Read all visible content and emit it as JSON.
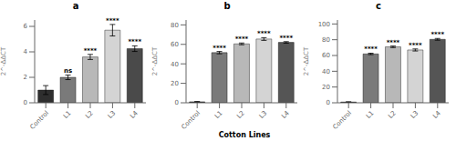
{
  "chart_data": [
    {
      "type": "bar",
      "title": "a",
      "ylabel": "2^-ΔΔCT",
      "categories": [
        "Control",
        "L1",
        "L2",
        "L3",
        "L4"
      ],
      "values": [
        1.0,
        2.0,
        3.6,
        5.7,
        4.25
      ],
      "errors": [
        0.35,
        0.18,
        0.2,
        0.45,
        0.22
      ],
      "colors": [
        "#2e2e2e",
        "#7a7a7a",
        "#b8b8b8",
        "#d4d4d4",
        "#4a4a4a"
      ],
      "annotations": [
        null,
        "ns",
        "****",
        "****",
        "****"
      ],
      "ylim": [
        0,
        6.5
      ],
      "yticks": [
        0,
        2,
        4,
        6
      ],
      "grid": false
    },
    {
      "type": "bar",
      "title": "b",
      "ylabel": "2^-ΔΔCT",
      "xlabel": "Cotton Lines",
      "categories": [
        "Control",
        "L1",
        "L2",
        "L3",
        "L4"
      ],
      "values": [
        1.0,
        51.5,
        60.5,
        65.5,
        62.0
      ],
      "errors": [
        0.2,
        1.2,
        0.9,
        1.4,
        0.8
      ],
      "colors": [
        "#2e2e2e",
        "#7a7a7a",
        "#b8b8b8",
        "#d4d4d4",
        "#555555"
      ],
      "annotations": [
        null,
        "****",
        "****",
        "****",
        "****"
      ],
      "ylim": [
        0,
        85
      ],
      "yticks": [
        0,
        20,
        40,
        60,
        80
      ],
      "grid": false
    },
    {
      "type": "bar",
      "title": "c",
      "ylabel": "2^-ΔΔCT",
      "categories": [
        "Control",
        "L1",
        "L2",
        "L3",
        "L4"
      ],
      "values": [
        1.0,
        62.0,
        71.0,
        67.0,
        80.5
      ],
      "errors": [
        0.2,
        0.9,
        1.0,
        1.3,
        1.1
      ],
      "colors": [
        "#2e2e2e",
        "#7a7a7a",
        "#b8b8b8",
        "#d4d4d4",
        "#555555"
      ],
      "annotations": [
        null,
        "****",
        "****",
        "****",
        "****"
      ],
      "ylim": [
        0,
        105
      ],
      "yticks": [
        0,
        20,
        40,
        60,
        80,
        100
      ],
      "grid": false
    }
  ]
}
